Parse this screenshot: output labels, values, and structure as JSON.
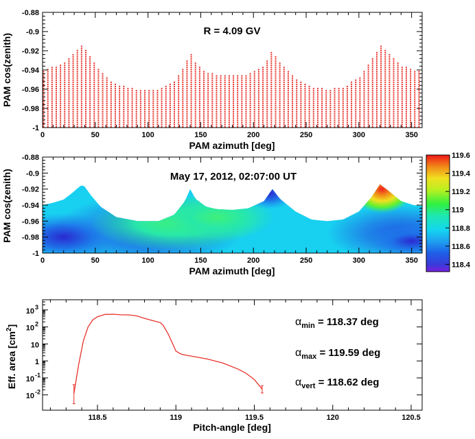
{
  "charts": {
    "top": {
      "type": "scatter",
      "title": "R = 4.09 GV",
      "xlabel": "PAM azimuth [deg]",
      "ylabel": "PAM cos(zenith)",
      "xlim": [
        0,
        360
      ],
      "ylim": [
        -1,
        -0.88
      ],
      "x_ticks": [
        "0",
        "50",
        "100",
        "150",
        "200",
        "250",
        "300",
        "350"
      ],
      "y_ticks": [
        "-1",
        "-0.98",
        "-0.96",
        "-0.94",
        "-0.92",
        "-0.9",
        "-0.88"
      ],
      "marker_color": "#e8312a",
      "grid_step_x_deg": 4,
      "grid_step_y": 0.0022
    },
    "middle": {
      "type": "heatmap",
      "title": "May 17, 2012, 02:07:00 UT",
      "xlabel": "PAM azimuth [deg]",
      "ylabel": "PAM cos(zenith)",
      "xlim": [
        0,
        360
      ],
      "ylim": [
        -1,
        -0.88
      ],
      "x_ticks": [
        "0",
        "50",
        "100",
        "150",
        "200",
        "250",
        "300",
        "350"
      ],
      "y_ticks": [
        "-1",
        "-0.98",
        "-0.96",
        "-0.94",
        "-0.92",
        "-0.9",
        "-0.88"
      ],
      "colorbar_range": [
        118.32,
        119.6
      ],
      "colorbar_ticks": [
        "118.4",
        "118.6",
        "118.8",
        "119",
        "119.2",
        "119.4",
        "119.6"
      ]
    },
    "boundary": {
      "x": [
        0,
        10,
        20,
        28,
        34,
        37,
        40,
        46,
        55,
        70,
        90,
        110,
        125,
        135,
        140,
        145,
        155,
        165,
        180,
        195,
        210,
        218,
        225,
        240,
        255,
        270,
        285,
        300,
        312,
        320,
        328,
        340,
        352,
        360
      ],
      "y": [
        -0.94,
        -0.937,
        -0.933,
        -0.925,
        -0.918,
        -0.915,
        -0.917,
        -0.928,
        -0.942,
        -0.955,
        -0.96,
        -0.96,
        -0.952,
        -0.935,
        -0.92,
        -0.932,
        -0.942,
        -0.945,
        -0.946,
        -0.944,
        -0.935,
        -0.92,
        -0.932,
        -0.948,
        -0.958,
        -0.96,
        -0.958,
        -0.948,
        -0.93,
        -0.914,
        -0.922,
        -0.935,
        -0.94,
        -0.941
      ]
    },
    "bottom": {
      "type": "line",
      "xlabel": "Pitch-angle [deg]",
      "ylabel": "Eff. area [cm",
      "ylabel_sup": "2",
      "ylabel_end": "]",
      "xlim": [
        118.15,
        120.57
      ],
      "ylim_log10": [
        -2.9,
        3.6
      ],
      "x_ticks": [
        118.5,
        119,
        119.5,
        120,
        120.5
      ],
      "x_tick_labels": [
        "118.5",
        "119",
        "119.5",
        "120",
        "120.5"
      ],
      "y_ticks": [
        {
          "label": "10",
          "sup": "-2",
          "exp": -2
        },
        {
          "label": "10",
          "sup": "-1",
          "exp": -1
        },
        {
          "label": "1",
          "sup": "",
          "exp": 0
        },
        {
          "label": "10",
          "sup": "",
          "exp": 1
        },
        {
          "label": "10",
          "sup": "2",
          "exp": 2
        },
        {
          "label": "10",
          "sup": "3",
          "exp": 3
        }
      ],
      "line_color": "#e8312a",
      "x": [
        118.35,
        118.38,
        118.41,
        118.44,
        118.47,
        118.5,
        118.55,
        118.6,
        118.65,
        118.7,
        118.75,
        118.8,
        118.85,
        118.9,
        118.92,
        118.95,
        118.98,
        119.0,
        119.03,
        119.05,
        119.1,
        119.2,
        119.3,
        119.4,
        119.45,
        119.5,
        119.55
      ],
      "y": [
        0.012,
        0.6,
        15,
        100,
        260,
        400,
        550,
        560,
        520,
        510,
        450,
        320,
        240,
        180,
        120,
        40,
        10,
        3.8,
        2.6,
        2.3,
        1.9,
        1.3,
        0.75,
        0.32,
        0.18,
        0.08,
        0.022
      ],
      "err_low": [
        0.003,
        null,
        null,
        null,
        null,
        null,
        null,
        null,
        null,
        null,
        null,
        null,
        null,
        null,
        null,
        null,
        null,
        null,
        null,
        null,
        null,
        null,
        null,
        null,
        null,
        null,
        0.013
      ],
      "err_high": [
        0.04,
        null,
        null,
        null,
        null,
        null,
        null,
        null,
        null,
        null,
        null,
        null,
        null,
        null,
        null,
        null,
        null,
        null,
        null,
        null,
        null,
        null,
        null,
        null,
        null,
        null,
        0.035
      ],
      "annotations": [
        {
          "sym": "α",
          "sub": "min",
          "text": " = 118.37 deg"
        },
        {
          "sym": "α",
          "sub": "max",
          "text": " = 119.59 deg"
        },
        {
          "sym": "α",
          "sub": "vert",
          "text": " = 118.62 deg"
        }
      ]
    }
  }
}
